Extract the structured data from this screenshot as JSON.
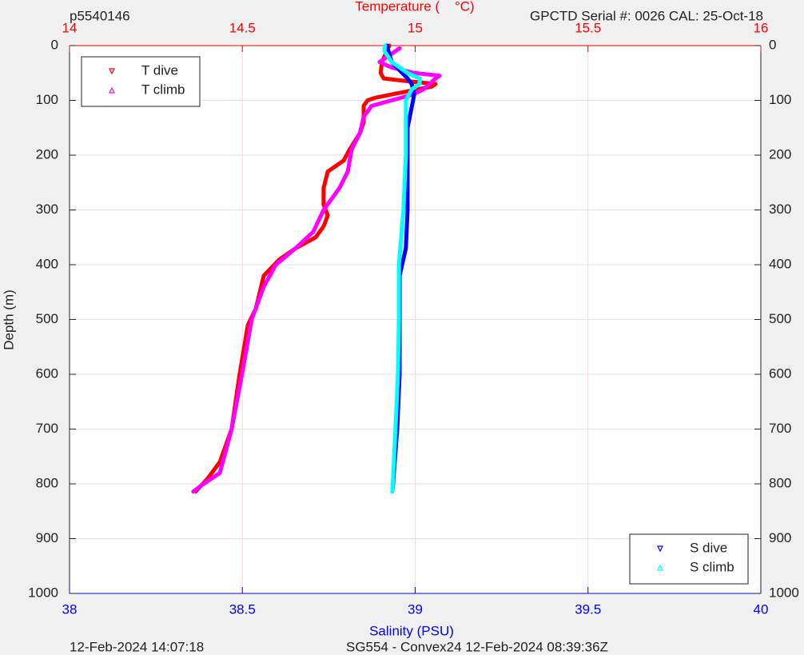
{
  "chart_data": {
    "type": "line",
    "title": "Temperature (    °C)",
    "corner_left": "p5540146",
    "corner_right": "GPCTD Serial #: 0026 CAL: 25-Oct-18",
    "xlabel": "Salinity (PSU)",
    "ylabel": "Depth (m)",
    "footer_left": "12-Feb-2024 14:07:18",
    "footer_right": "SG554 - Convex24 12-Feb-2024 08:39:36Z",
    "xlim": [
      14,
      16
    ],
    "xticks": [
      14,
      14.5,
      15,
      15.5,
      16
    ],
    "xcolor": "#ff0000",
    "x2lim": [
      38,
      40
    ],
    "x2ticks": [
      38,
      38.5,
      39,
      39.5,
      40
    ],
    "x2color": "#0000ff",
    "ylim": [
      0,
      1000
    ],
    "y_reversed": true,
    "yticks": [
      0,
      100,
      200,
      300,
      400,
      500,
      600,
      700,
      800,
      900,
      1000
    ],
    "grid": true,
    "series": [
      {
        "name": "T dive",
        "color": "#ff0000",
        "marker": "v",
        "axis": "x",
        "legend": "upper left",
        "x": [
          14.925,
          14.904,
          14.9,
          14.909,
          14.978,
          15.059,
          15.047,
          14.966,
          14.886,
          14.862,
          14.851,
          14.851,
          14.84,
          14.81,
          14.793,
          14.747,
          14.735,
          14.735,
          14.747,
          14.735,
          14.712,
          14.654,
          14.608,
          14.562,
          14.539,
          14.516,
          14.492,
          14.469,
          14.435,
          14.4,
          14.365
        ],
        "y": [
          0,
          30,
          50,
          60,
          65,
          70,
          75,
          85,
          95,
          100,
          110,
          140,
          160,
          190,
          210,
          230,
          260,
          290,
          310,
          330,
          350,
          370,
          390,
          420,
          480,
          510,
          600,
          700,
          760,
          790,
          814
        ]
      },
      {
        "name": "T climb",
        "color": "#ff00ff",
        "marker": "^",
        "axis": "x",
        "legend": "upper left",
        "x": [
          14.358,
          14.388,
          14.435,
          14.469,
          14.499,
          14.527,
          14.562,
          14.597,
          14.654,
          14.705,
          14.735,
          14.781,
          14.805,
          14.816,
          14.84,
          14.851,
          14.874,
          14.932,
          14.99,
          15.024,
          15.059,
          15.071,
          14.998,
          14.932,
          14.897,
          14.955
        ],
        "y": [
          814,
          800,
          780,
          700,
          600,
          500,
          440,
          400,
          370,
          340,
          300,
          260,
          230,
          190,
          160,
          130,
          110,
          100,
          90,
          80,
          60,
          55,
          50,
          40,
          30,
          5
        ]
      },
      {
        "name": "S dive",
        "color": "#0000ff",
        "marker": "v",
        "axis": "x2",
        "legend": "lower right",
        "x": [
          38.918,
          38.932,
          38.978,
          38.99,
          38.997,
          38.978,
          38.978,
          38.973,
          38.955,
          38.955,
          38.955,
          38.948,
          38.936,
          38.934
        ],
        "y": [
          0,
          30,
          60,
          70,
          90,
          150,
          300,
          370,
          420,
          500,
          600,
          700,
          800,
          814
        ]
      },
      {
        "name": "S climb",
        "color": "#00ffff",
        "marker": "^",
        "axis": "x2",
        "legend": "lower right",
        "x": [
          38.934,
          38.943,
          38.95,
          38.953,
          38.953,
          38.966,
          38.973,
          38.973,
          38.99,
          39.013,
          39.013,
          38.978,
          38.932,
          38.911,
          38.913
        ],
        "y": [
          814,
          700,
          600,
          500,
          400,
          300,
          200,
          100,
          80,
          70,
          60,
          50,
          30,
          10,
          0
        ]
      }
    ]
  }
}
